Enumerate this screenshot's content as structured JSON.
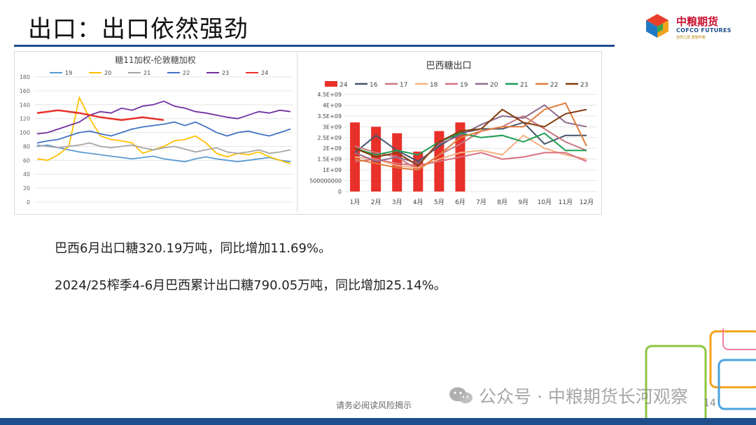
{
  "slide": {
    "title": "出口：出口依然强劲",
    "paragraph1": "巴西6月出口糖320.19万吨，同比增加11.69%。",
    "paragraph2": "2024/25榨季4-6月巴西累计出口糖790.05万吨，同比增加25.14%。",
    "disclaimer": "请务必阅读风险揭示",
    "page_number": "14",
    "watermark": "公众号 · 中粮期货长河观察",
    "logo_cn": "中粮期货",
    "logo_en": "COFCO FUTURES",
    "logo_tagline": "自然之源 重塑你我",
    "wm_icon": "wechat-icon"
  },
  "colors": {
    "brand_blue": "#1f4e8c",
    "brand_red": "#c8102e"
  },
  "chart_data": [
    {
      "type": "line",
      "title": "糖11加权-伦敦糖加权",
      "xlabel": "",
      "ylabel": "",
      "ylim": [
        0,
        180
      ],
      "yticks": [
        "0",
        "20",
        "40",
        "60",
        "80",
        "100",
        "120",
        "140",
        "160",
        "180"
      ],
      "grid": true,
      "legend": "top",
      "series": [
        {
          "name": "19",
          "color": "#5b9bd5",
          "values": [
            80,
            82,
            78,
            75,
            72,
            70,
            68,
            66,
            64,
            62,
            64,
            66,
            62,
            60,
            58,
            62,
            65,
            62,
            60,
            58,
            60,
            62,
            64,
            60,
            58
          ]
        },
        {
          "name": "20",
          "color": "#ffc000",
          "values": [
            62,
            60,
            68,
            80,
            150,
            120,
            95,
            90,
            88,
            85,
            70,
            75,
            80,
            88,
            90,
            95,
            85,
            70,
            65,
            70,
            68,
            72,
            65,
            60,
            55
          ]
        },
        {
          "name": "21",
          "color": "#a5a5a5",
          "values": [
            82,
            80,
            78,
            80,
            82,
            85,
            80,
            78,
            80,
            82,
            78,
            75,
            78,
            80,
            76,
            72,
            75,
            78,
            72,
            70,
            72,
            75,
            70,
            72,
            75
          ]
        },
        {
          "name": "22",
          "color": "#4472c4",
          "values": [
            85,
            88,
            90,
            95,
            100,
            102,
            98,
            95,
            100,
            105,
            108,
            110,
            112,
            115,
            110,
            115,
            108,
            100,
            95,
            100,
            102,
            98,
            95,
            100,
            105
          ]
        },
        {
          "name": "23",
          "color": "#7030a0",
          "values": [
            98,
            100,
            105,
            110,
            115,
            125,
            130,
            128,
            135,
            132,
            138,
            140,
            145,
            138,
            135,
            130,
            128,
            125,
            122,
            120,
            125,
            130,
            128,
            132,
            130
          ]
        },
        {
          "name": "24",
          "color": "#e8312a",
          "values": [
            128,
            130,
            132,
            130,
            128,
            125,
            122,
            120,
            118,
            120,
            122,
            120,
            118
          ]
        }
      ]
    },
    {
      "type": "bar",
      "title": "巴西糖出口",
      "xlabel": "",
      "ylabel": "",
      "ylim": [
        0,
        4500000000
      ],
      "yticks": [
        "0",
        "500000000",
        "1E+09",
        "1.5E+09",
        "2E+09",
        "2.5E+09",
        "3E+09",
        "3.5E+09",
        "4E+09",
        "4.5E+09"
      ],
      "grid": true,
      "legend": "top",
      "categories": [
        "1月",
        "2月",
        "3月",
        "4月",
        "5月",
        "6月",
        "7月",
        "8月",
        "9月",
        "10月",
        "11月",
        "12月"
      ],
      "bar_series": {
        "name": "24",
        "color": "#e8312a",
        "values": [
          3200000000,
          3000000000,
          2700000000,
          1850000000,
          2800000000,
          3200000000
        ]
      },
      "series": [
        {
          "name": "16",
          "color": "#44546a",
          "values": [
            1800000000,
            2600000000,
            1900000000,
            1400000000,
            2100000000,
            2700000000,
            2900000000,
            2900000000,
            3200000000,
            2200000000,
            2600000000,
            2600000000
          ]
        },
        {
          "name": "17",
          "color": "#c9787e",
          "values": [
            2100000000,
            1800000000,
            1600000000,
            1000000000,
            1700000000,
            2200000000,
            2800000000,
            3000000000,
            3500000000,
            2900000000,
            2300000000,
            1900000000
          ]
        },
        {
          "name": "18",
          "color": "#f4b183",
          "values": [
            1600000000,
            1500000000,
            1200000000,
            1100000000,
            1500000000,
            1800000000,
            1900000000,
            1700000000,
            2600000000,
            2000000000,
            1700000000,
            1500000000
          ]
        },
        {
          "name": "19",
          "color": "#d9707e",
          "values": [
            1400000000,
            1500000000,
            1300000000,
            1200000000,
            1400000000,
            1600000000,
            1800000000,
            1500000000,
            1600000000,
            1800000000,
            1800000000,
            1400000000
          ]
        },
        {
          "name": "20",
          "color": "#8e6b8e",
          "values": [
            1800000000,
            1400000000,
            1600000000,
            1300000000,
            2200000000,
            2600000000,
            3100000000,
            3500000000,
            3400000000,
            4000000000,
            3200000000,
            3000000000
          ]
        },
        {
          "name": "21",
          "color": "#1e9e54",
          "values": [
            2000000000,
            1700000000,
            1900000000,
            1700000000,
            2300000000,
            2700000000,
            2500000000,
            2600000000,
            2300000000,
            2700000000,
            1900000000,
            1900000000
          ]
        },
        {
          "name": "22",
          "color": "#e07b39",
          "values": [
            1500000000,
            1300000000,
            1100000000,
            1000000000,
            1700000000,
            2500000000,
            2800000000,
            3000000000,
            3000000000,
            3800000000,
            4100000000,
            2100000000
          ]
        },
        {
          "name": "23",
          "color": "#843c0c",
          "values": [
            2000000000,
            1600000000,
            1800000000,
            1200000000,
            2300000000,
            2800000000,
            2900000000,
            3800000000,
            3200000000,
            3000000000,
            3600000000,
            3800000000
          ]
        }
      ]
    }
  ]
}
